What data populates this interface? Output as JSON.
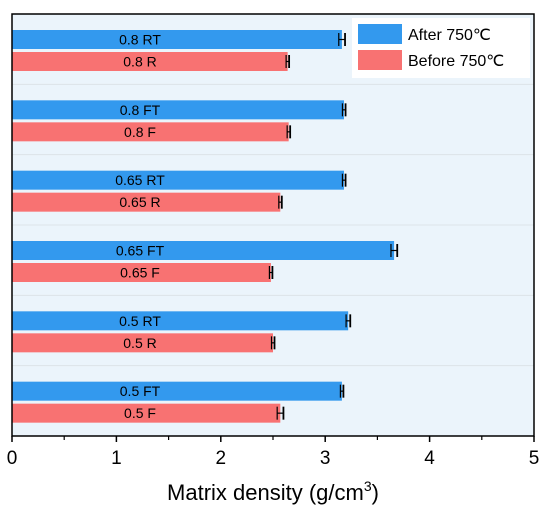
{
  "chart_data": {
    "type": "bar",
    "orientation": "horizontal",
    "xlabel": "Matrix density (g/cm",
    "xlabel_sup": "3",
    "xlabel_close": ")",
    "xlim": [
      0,
      5
    ],
    "x_ticks": [
      "0",
      "1",
      "2",
      "3",
      "4",
      "5"
    ],
    "grid": false,
    "legend_position": "top-right",
    "groups": [
      {
        "bars": [
          {
            "label": "0.8 RT",
            "value": 3.16,
            "error": 0.03,
            "series": "After 750℃"
          },
          {
            "label": "0.8 R",
            "value": 2.64,
            "error": 0.01,
            "series": "Before 750℃"
          }
        ]
      },
      {
        "bars": [
          {
            "label": "0.8 FT",
            "value": 3.18,
            "error": 0.015,
            "series": "After 750℃"
          },
          {
            "label": "0.8 F",
            "value": 2.65,
            "error": 0.01,
            "series": "Before 750℃"
          }
        ]
      },
      {
        "bars": [
          {
            "label": "0.65 RT",
            "value": 3.18,
            "error": 0.015,
            "series": "After 750℃"
          },
          {
            "label": "0.65 R",
            "value": 2.57,
            "error": 0.01,
            "series": "Before 750℃"
          }
        ]
      },
      {
        "bars": [
          {
            "label": "0.65 FT",
            "value": 3.66,
            "error": 0.03,
            "series": "After 750℃"
          },
          {
            "label": "0.65 F",
            "value": 2.48,
            "error": 0.01,
            "series": "Before 750℃"
          }
        ]
      },
      {
        "bars": [
          {
            "label": "0.5 RT",
            "value": 3.22,
            "error": 0.02,
            "series": "After 750℃"
          },
          {
            "label": "0.5 R",
            "value": 2.5,
            "error": 0.01,
            "series": "Before 750℃"
          }
        ]
      },
      {
        "bars": [
          {
            "label": "0.5 FT",
            "value": 3.16,
            "error": 0.01,
            "series": "After 750℃"
          },
          {
            "label": "0.5 F",
            "value": 2.57,
            "error": 0.03,
            "series": "Before 750℃"
          }
        ]
      }
    ],
    "legend": [
      {
        "name": "After 750℃",
        "color": "#3399ee"
      },
      {
        "name": "Before 750℃",
        "color": "#f87272"
      }
    ],
    "colors": {
      "plot_background": "#ebf4fb",
      "after": "#3399ee",
      "before": "#f87272",
      "separator": "#dde3e8"
    }
  }
}
